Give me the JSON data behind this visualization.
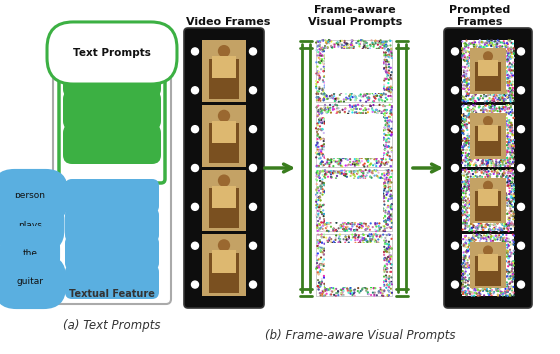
{
  "fig_width": 5.6,
  "fig_height": 3.54,
  "dpi": 100,
  "bg_color": "#ffffff",
  "green_color": "#3cb043",
  "blue_color": "#5aafe0",
  "dark_green": "#2d7a1f",
  "arrow_green": "#3a7d1e",
  "caption_a": "(a) Text Prompts",
  "caption_b": "(b) Frame-aware Visual Prompts",
  "text_prompts_label": "Text Prompts",
  "textual_feature_label": "Textual Feature",
  "video_frames_label": "Video Frames",
  "frame_aware_label": "Frame-aware\nVisual Prompts",
  "prompted_frames_label": "Prompted\nFrames",
  "word_labels": [
    "person",
    "plays",
    "the",
    "guitar"
  ],
  "n_green_ovals": 3,
  "n_blue_ovals": 4,
  "n_frames": 4
}
